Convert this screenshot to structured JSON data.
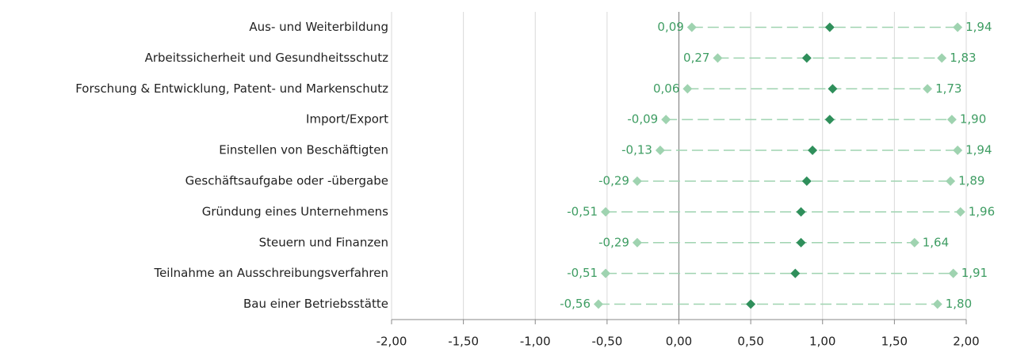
{
  "chart_data": {
    "type": "dumbbell",
    "categories": [
      "Aus- und Weiterbildung",
      "Arbeitssicherheit und Gesundheitsschutz",
      "Forschung & Entwicklung, Patent- und Markenschutz",
      "Import/Export",
      "Einstellen von Beschäftigten",
      "Geschäftsaufgabe oder -übergabe",
      "Gründung eines Unternehmens",
      "Steuern und Finanzen",
      "Teilnahme an Ausschreibungsverfahren",
      "Bau einer Betriebsstätte"
    ],
    "series": [
      {
        "role": "min",
        "color": "#9fd3b0",
        "values": [
          0.09,
          0.27,
          0.06,
          -0.09,
          -0.13,
          -0.29,
          -0.51,
          -0.29,
          -0.51,
          -0.56
        ],
        "value_labels": [
          "0,09",
          "0,27",
          "0,06",
          "-0,09",
          "-0,13",
          "-0,29",
          "-0,51",
          "-0,29",
          "-0,51",
          "-0,56"
        ]
      },
      {
        "role": "mean",
        "color": "#2f8f5b",
        "values": [
          1.05,
          0.89,
          1.07,
          1.05,
          0.93,
          0.89,
          0.85,
          0.85,
          0.81,
          0.5
        ]
      },
      {
        "role": "max",
        "color": "#9fd3b0",
        "values": [
          1.94,
          1.83,
          1.73,
          1.9,
          1.94,
          1.89,
          1.96,
          1.64,
          1.91,
          1.8
        ],
        "value_labels": [
          "1,94",
          "1,83",
          "1,73",
          "1,90",
          "1,94",
          "1,89",
          "1,96",
          "1,64",
          "1,91",
          "1,80"
        ]
      }
    ],
    "label_color": "#3f9d63",
    "xlim": [
      -2,
      2
    ],
    "xticks": [
      {
        "value": -2,
        "label": "-2,00"
      },
      {
        "value": -1.5,
        "label": "-1,50"
      },
      {
        "value": -1,
        "label": "-1,00"
      },
      {
        "value": -0.5,
        "label": "-0,50"
      },
      {
        "value": 0,
        "label": "0,00"
      },
      {
        "value": 0.5,
        "label": "0,50"
      },
      {
        "value": 1,
        "label": "1,00"
      },
      {
        "value": 1.5,
        "label": "1,50"
      },
      {
        "value": 2,
        "label": "2,00"
      }
    ],
    "grid": true
  }
}
